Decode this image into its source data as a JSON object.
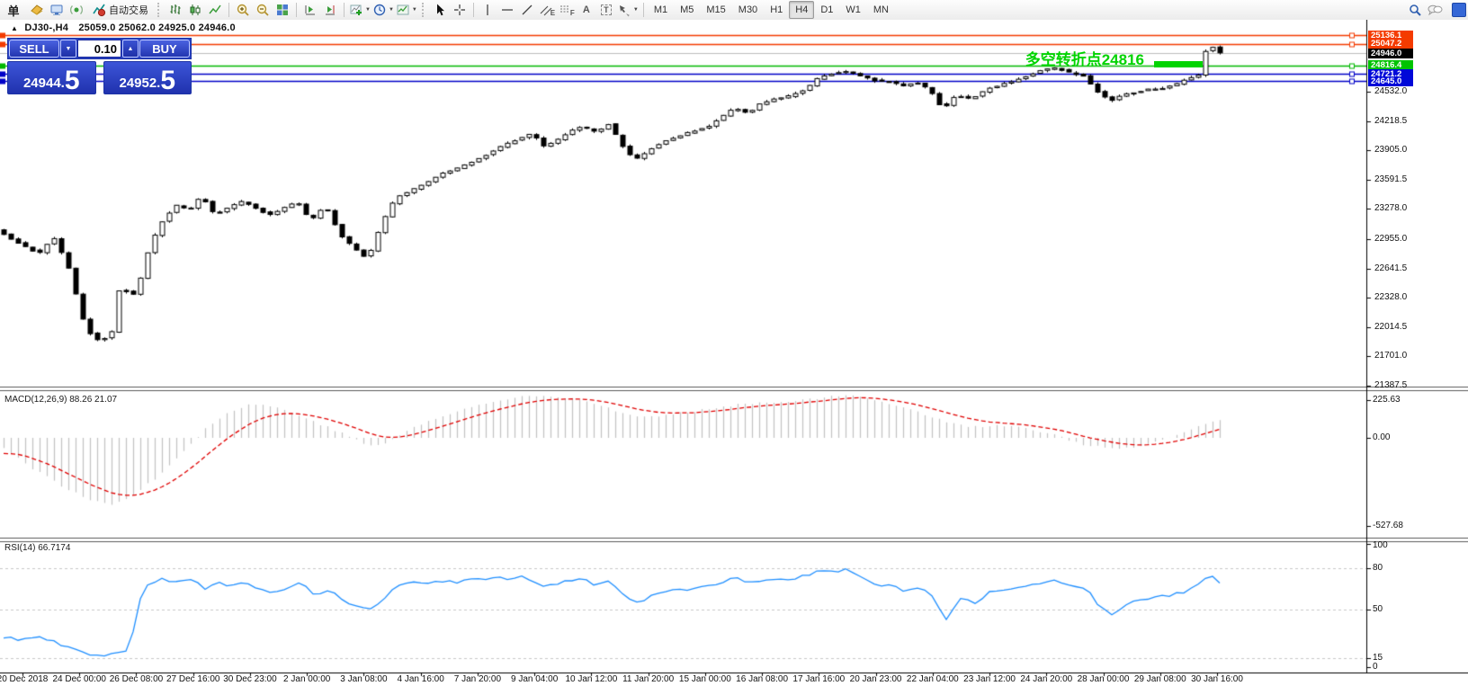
{
  "toolbar": {
    "order_label": "单",
    "autotrade_label": "自动交易",
    "timeframes": [
      "M1",
      "M5",
      "M15",
      "M30",
      "H1",
      "H4",
      "D1",
      "W1",
      "MN"
    ],
    "active_timeframe": "H4",
    "tool_letters": {
      "text_a": "A",
      "text_t": "T",
      "channel_e": "E",
      "fibo_f": "F"
    }
  },
  "chart_title": {
    "marker": "▲",
    "symbol": "DJ30-,H4",
    "ohlc": "25059.0 25062.0 24925.0 24946.0"
  },
  "trade_panel": {
    "sell_label": "SELL",
    "buy_label": "BUY",
    "volume": "0.10",
    "sell_price_int": "24944",
    "sell_price_dot": ".",
    "sell_price_pip": "5",
    "buy_price_int": "24952",
    "buy_price_dot": ".",
    "buy_price_pip": "5"
  },
  "annotation": {
    "text": "多空转折点24816"
  },
  "price_axis": {
    "tags": [
      {
        "text": "25136.1",
        "value": 25136.1,
        "bg": "#f43b00",
        "line": "#f43b00",
        "marker": true
      },
      {
        "text": "25047.2",
        "value": 25047.2,
        "bg": "#f43b00",
        "line": "#f43b00",
        "marker": true
      },
      {
        "text": "24946.0",
        "value": 24946.0,
        "bg": "#000000",
        "line": "#bdbdbd",
        "marker": false
      },
      {
        "text": "24816.4",
        "value": 24816.4,
        "bg": "#00c400",
        "line": "#00b800",
        "marker": true
      },
      {
        "text": "24721.2",
        "value": 24721.2,
        "bg": "#0008d8",
        "line": "#0000c8",
        "marker": true
      },
      {
        "text": "24645.0",
        "value": 24645.0,
        "bg": "#0008d8",
        "line": "#0000c8",
        "marker": true
      }
    ],
    "ticks": [
      "24532.0",
      "24218.5",
      "23905.0",
      "23591.5",
      "23278.0",
      "22955.0",
      "22641.5",
      "22328.0",
      "22014.5",
      "21701.0",
      "21387.5"
    ]
  },
  "macd_panel": {
    "label": "MACD(12,26,9) 88.26 21.07",
    "scale": [
      "225.63",
      "0.00",
      "-527.68"
    ]
  },
  "rsi_panel": {
    "label": "RSI(14) 66.7174",
    "scale": [
      "100",
      "80",
      "50",
      "15",
      "0"
    ]
  },
  "time_axis": [
    "20 Dec 2018",
    "24 Dec 00:00",
    "26 Dec 08:00",
    "27 Dec 16:00",
    "30 Dec 23:00",
    "2 Jan 00:00",
    "3 Jan 08:00",
    "4 Jan 16:00",
    "7 Jan 20:00",
    "9 Jan 04:00",
    "10 Jan 12:00",
    "11 Jan 20:00",
    "15 Jan 00:00",
    "16 Jan 08:00",
    "17 Jan 16:00",
    "20 Jan 23:00",
    "22 Jan 04:00",
    "23 Jan 12:00",
    "24 Jan 20:00",
    "28 Jan 00:00",
    "29 Jan 08:00",
    "30 Jan 16:00"
  ],
  "chart_data": {
    "type": "candlestick",
    "symbol": "DJ30-",
    "timeframe": "H4",
    "ohlc_display": {
      "open": 25059.0,
      "high": 25062.0,
      "low": 24925.0,
      "close": 24946.0
    },
    "bid": 24944.5,
    "ask": 24952.5,
    "horizontal_lines": [
      25136.1,
      25047.2,
      24946.0,
      24816.4,
      24721.2,
      24645.0
    ],
    "price_ticks": [
      24532.0,
      24218.5,
      23905.0,
      23591.5,
      23278.0,
      22955.0,
      22641.5,
      22328.0,
      22014.5,
      21701.0,
      21387.5
    ],
    "candle_count": 170,
    "price_path": [
      [
        0,
        23050
      ],
      [
        25,
        22900
      ],
      [
        45,
        22800
      ],
      [
        60,
        22980
      ],
      [
        75,
        22700
      ],
      [
        95,
        21990
      ],
      [
        110,
        21850
      ],
      [
        125,
        21980
      ],
      [
        133,
        22620
      ],
      [
        140,
        22300
      ],
      [
        150,
        22420
      ],
      [
        163,
        22880
      ],
      [
        178,
        23180
      ],
      [
        192,
        23320
      ],
      [
        205,
        23260
      ],
      [
        218,
        23420
      ],
      [
        232,
        23220
      ],
      [
        248,
        23300
      ],
      [
        262,
        23360
      ],
      [
        278,
        23270
      ],
      [
        292,
        23210
      ],
      [
        308,
        23300
      ],
      [
        320,
        23360
      ],
      [
        334,
        23150
      ],
      [
        350,
        23320
      ],
      [
        365,
        23010
      ],
      [
        380,
        22860
      ],
      [
        395,
        22740
      ],
      [
        410,
        23120
      ],
      [
        425,
        23400
      ],
      [
        440,
        23470
      ],
      [
        458,
        23560
      ],
      [
        475,
        23660
      ],
      [
        492,
        23720
      ],
      [
        508,
        23790
      ],
      [
        524,
        23870
      ],
      [
        540,
        23960
      ],
      [
        556,
        24030
      ],
      [
        570,
        24090
      ],
      [
        582,
        23950
      ],
      [
        596,
        24010
      ],
      [
        610,
        24110
      ],
      [
        624,
        24160
      ],
      [
        638,
        24100
      ],
      [
        652,
        24190
      ],
      [
        666,
        23960
      ],
      [
        680,
        23800
      ],
      [
        695,
        23910
      ],
      [
        710,
        24000
      ],
      [
        726,
        24060
      ],
      [
        742,
        24110
      ],
      [
        758,
        24160
      ],
      [
        772,
        24260
      ],
      [
        786,
        24360
      ],
      [
        800,
        24300
      ],
      [
        814,
        24410
      ],
      [
        830,
        24460
      ],
      [
        846,
        24490
      ],
      [
        862,
        24560
      ],
      [
        876,
        24690
      ],
      [
        892,
        24730
      ],
      [
        906,
        24750
      ],
      [
        920,
        24700
      ],
      [
        936,
        24650
      ],
      [
        950,
        24640
      ],
      [
        966,
        24600
      ],
      [
        980,
        24630
      ],
      [
        994,
        24550
      ],
      [
        1008,
        24340
      ],
      [
        1022,
        24500
      ],
      [
        1038,
        24450
      ],
      [
        1054,
        24560
      ],
      [
        1070,
        24610
      ],
      [
        1086,
        24660
      ],
      [
        1100,
        24710
      ],
      [
        1114,
        24770
      ],
      [
        1128,
        24790
      ],
      [
        1142,
        24740
      ],
      [
        1158,
        24700
      ],
      [
        1172,
        24540
      ],
      [
        1186,
        24430
      ],
      [
        1200,
        24510
      ],
      [
        1214,
        24530
      ],
      [
        1228,
        24560
      ],
      [
        1242,
        24570
      ],
      [
        1256,
        24610
      ],
      [
        1270,
        24680
      ],
      [
        1281,
        24720
      ],
      [
        1290,
        25055
      ],
      [
        1303,
        24946
      ]
    ],
    "macd": {
      "parameters": "12,26,9",
      "values": [
        88.26,
        21.07
      ],
      "scale": [
        225.63,
        0.0,
        -527.68
      ],
      "path": [
        [
          0,
          -60
        ],
        [
          30,
          -180
        ],
        [
          60,
          -280
        ],
        [
          90,
          -370
        ],
        [
          115,
          -395
        ],
        [
          140,
          -340
        ],
        [
          165,
          -230
        ],
        [
          190,
          -90
        ],
        [
          215,
          50
        ],
        [
          240,
          150
        ],
        [
          265,
          205
        ],
        [
          290,
          185
        ],
        [
          315,
          140
        ],
        [
          340,
          80
        ],
        [
          365,
          20
        ],
        [
          390,
          -45
        ],
        [
          410,
          -35
        ],
        [
          435,
          55
        ],
        [
          465,
          120
        ],
        [
          495,
          175
        ],
        [
          525,
          215
        ],
        [
          555,
          248
        ],
        [
          585,
          252
        ],
        [
          615,
          235
        ],
        [
          645,
          185
        ],
        [
          675,
          125
        ],
        [
          705,
          130
        ],
        [
          735,
          155
        ],
        [
          765,
          185
        ],
        [
          795,
          205
        ],
        [
          825,
          215
        ],
        [
          855,
          225
        ],
        [
          885,
          245
        ],
        [
          910,
          252
        ],
        [
          935,
          230
        ],
        [
          960,
          185
        ],
        [
          985,
          145
        ],
        [
          1010,
          95
        ],
        [
          1040,
          65
        ],
        [
          1070,
          75
        ],
        [
          1100,
          50
        ],
        [
          1130,
          10
        ],
        [
          1160,
          -45
        ],
        [
          1190,
          -65
        ],
        [
          1220,
          -55
        ],
        [
          1250,
          5
        ],
        [
          1275,
          55
        ],
        [
          1300,
          105
        ]
      ]
    },
    "rsi": {
      "period": 14,
      "value": 66.7174,
      "levels": [
        80,
        50,
        15
      ],
      "path": [
        [
          0,
          30
        ],
        [
          20,
          28
        ],
        [
          40,
          30
        ],
        [
          60,
          25
        ],
        [
          80,
          20
        ],
        [
          100,
          16
        ],
        [
          120,
          18
        ],
        [
          135,
          21
        ],
        [
          145,
          55
        ],
        [
          155,
          68
        ],
        [
          170,
          72
        ],
        [
          185,
          70
        ],
        [
          200,
          73
        ],
        [
          215,
          65
        ],
        [
          230,
          70
        ],
        [
          245,
          67
        ],
        [
          260,
          70
        ],
        [
          275,
          65
        ],
        [
          290,
          62
        ],
        [
          305,
          66
        ],
        [
          320,
          69
        ],
        [
          335,
          60
        ],
        [
          350,
          65
        ],
        [
          365,
          55
        ],
        [
          380,
          52
        ],
        [
          395,
          50
        ],
        [
          410,
          60
        ],
        [
          425,
          68
        ],
        [
          440,
          70
        ],
        [
          455,
          68
        ],
        [
          470,
          71
        ],
        [
          485,
          70
        ],
        [
          500,
          72
        ],
        [
          515,
          71
        ],
        [
          530,
          73
        ],
        [
          545,
          72
        ],
        [
          560,
          74
        ],
        [
          575,
          66
        ],
        [
          590,
          68
        ],
        [
          605,
          71
        ],
        [
          620,
          72
        ],
        [
          635,
          68
        ],
        [
          650,
          71
        ],
        [
          665,
          60
        ],
        [
          680,
          55
        ],
        [
          695,
          60
        ],
        [
          710,
          63
        ],
        [
          725,
          64
        ],
        [
          740,
          66
        ],
        [
          755,
          67
        ],
        [
          770,
          70
        ],
        [
          785,
          73
        ],
        [
          800,
          70
        ],
        [
          815,
          72
        ],
        [
          830,
          73
        ],
        [
          845,
          72
        ],
        [
          860,
          75
        ],
        [
          875,
          78
        ],
        [
          890,
          77
        ],
        [
          905,
          79
        ],
        [
          920,
          72
        ],
        [
          935,
          68
        ],
        [
          950,
          67
        ],
        [
          965,
          64
        ],
        [
          980,
          66
        ],
        [
          995,
          60
        ],
        [
          1010,
          42
        ],
        [
          1025,
          58
        ],
        [
          1040,
          55
        ],
        [
          1055,
          62
        ],
        [
          1070,
          63
        ],
        [
          1085,
          65
        ],
        [
          1100,
          67
        ],
        [
          1115,
          70
        ],
        [
          1130,
          71
        ],
        [
          1145,
          67
        ],
        [
          1160,
          65
        ],
        [
          1175,
          52
        ],
        [
          1190,
          46
        ],
        [
          1205,
          55
        ],
        [
          1220,
          57
        ],
        [
          1235,
          60
        ],
        [
          1250,
          60
        ],
        [
          1265,
          63
        ],
        [
          1280,
          68
        ],
        [
          1292,
          77
        ],
        [
          1303,
          70
        ]
      ]
    },
    "annotation_line": {
      "text": "多空转折点24816",
      "level": 24816.4,
      "color": "#00d400"
    }
  }
}
